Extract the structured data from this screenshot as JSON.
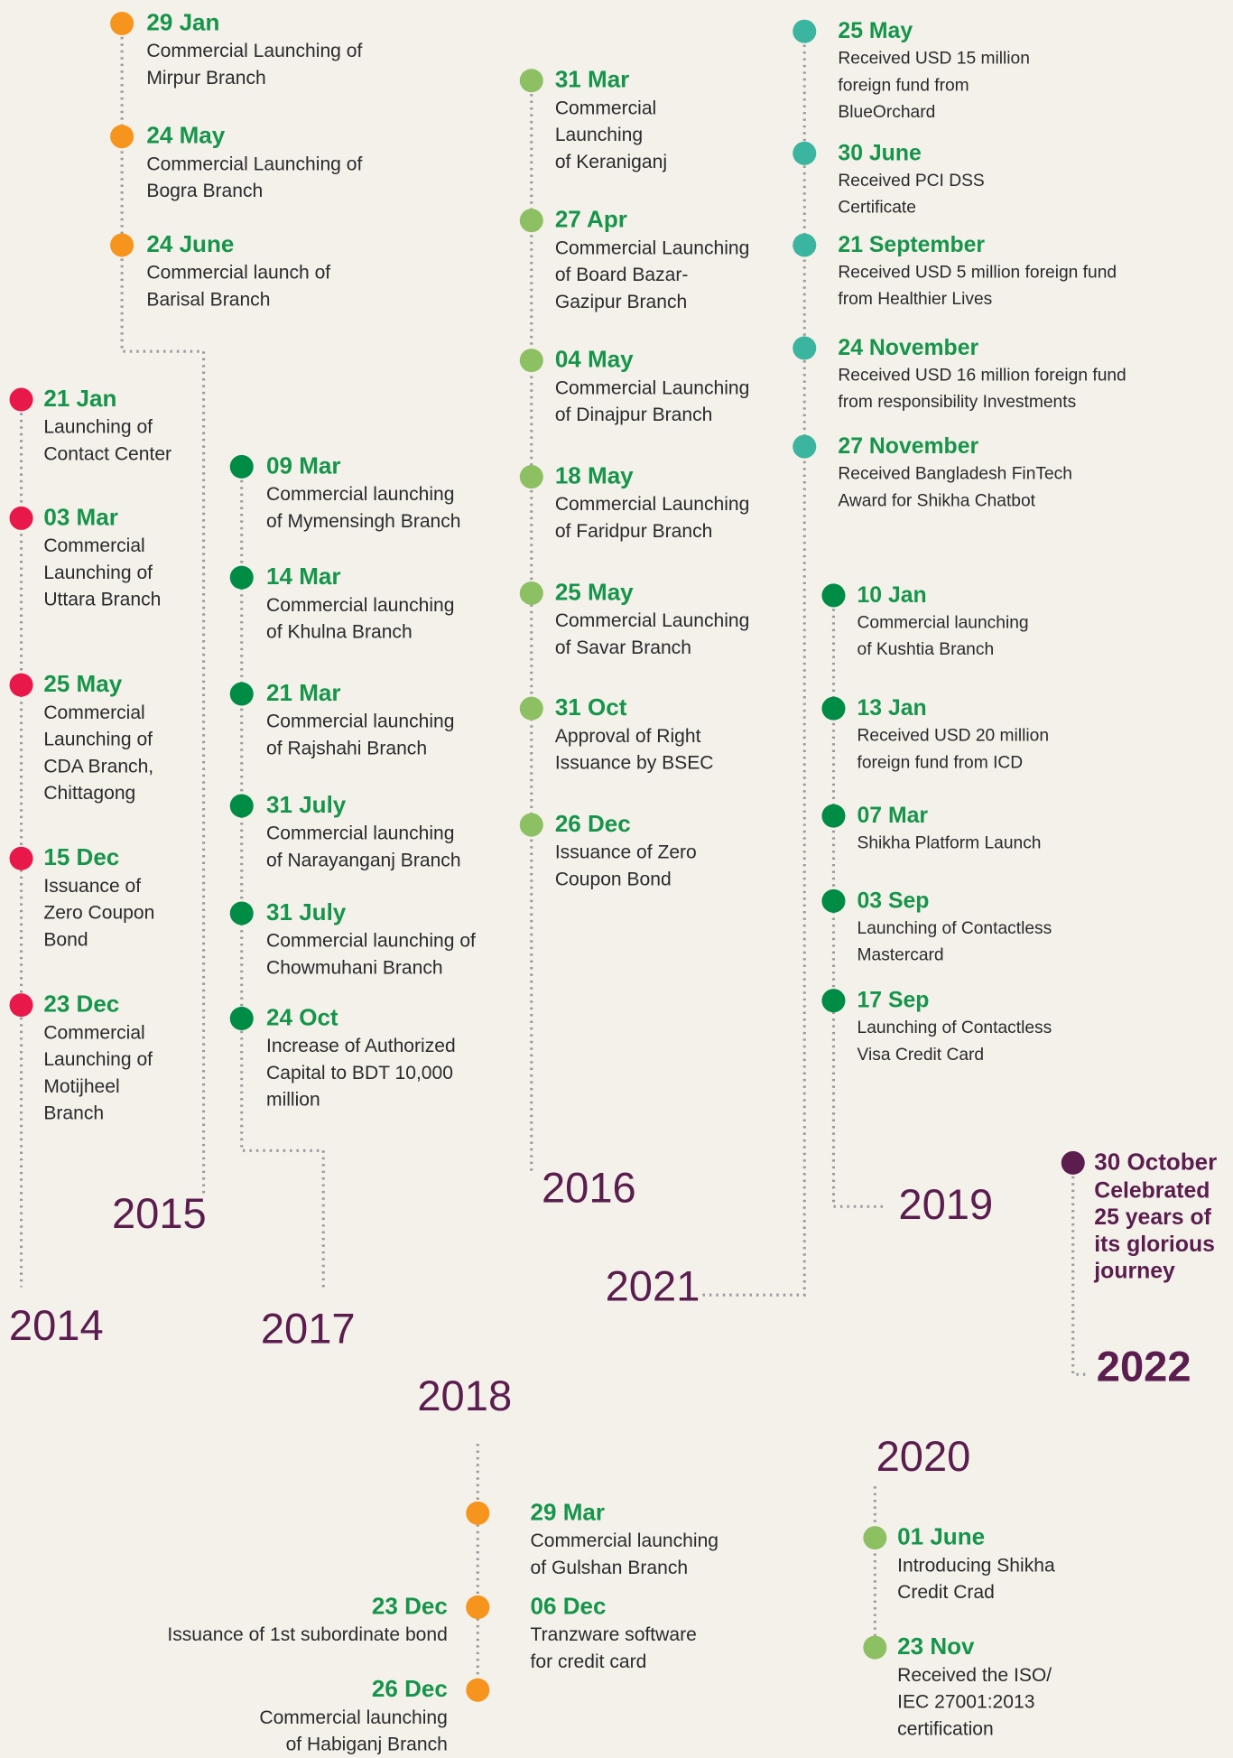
{
  "groups": [
    {
      "year": "2015",
      "events": [
        {
          "date": "29 Jan",
          "lines": [
            "Commercial Launching of",
            "Mirpur Branch"
          ]
        },
        {
          "date": "24 May",
          "lines": [
            "Commercial Launching of",
            "Bogra Branch"
          ]
        },
        {
          "date": "24 June",
          "lines": [
            "Commercial launch of",
            "Barisal Branch"
          ]
        }
      ]
    },
    {
      "year": "2014",
      "events": [
        {
          "date": "21 Jan",
          "lines": [
            "Launching of",
            "Contact Center"
          ]
        },
        {
          "date": "03 Mar",
          "lines": [
            "Commercial",
            "Launching of",
            "Uttara Branch"
          ]
        },
        {
          "date": "25 May",
          "lines": [
            "Commercial",
            "Launching of",
            "CDA Branch,",
            "Chittagong"
          ]
        },
        {
          "date": "15 Dec",
          "lines": [
            "Issuance of",
            "Zero Coupon",
            "Bond"
          ]
        },
        {
          "date": "23 Dec",
          "lines": [
            "Commercial",
            "Launching of",
            "Motijheel",
            "Branch"
          ]
        }
      ]
    },
    {
      "year": "2017",
      "events": [
        {
          "date": "09 Mar",
          "lines": [
            "Commercial launching",
            "of Mymensingh Branch"
          ]
        },
        {
          "date": "14 Mar",
          "lines": [
            "Commercial launching",
            "of Khulna Branch"
          ]
        },
        {
          "date": "21 Mar",
          "lines": [
            "Commercial launching",
            "of Rajshahi Branch"
          ]
        },
        {
          "date": "31 July",
          "lines": [
            "Commercial launching",
            "of Narayanganj Branch"
          ]
        },
        {
          "date": "31 July",
          "lines": [
            "Commercial launching of",
            "Chowmuhani Branch"
          ]
        },
        {
          "date": "24 Oct",
          "lines": [
            "Increase of Authorized",
            "Capital to BDT 10,000",
            "million"
          ]
        }
      ]
    },
    {
      "year": "2016",
      "events": [
        {
          "date": "31 Mar",
          "lines": [
            "Commercial",
            "Launching",
            "of Keraniganj"
          ]
        },
        {
          "date": "27 Apr",
          "lines": [
            "Commercial Launching",
            "of Board Bazar-",
            "Gazipur Branch"
          ]
        },
        {
          "date": "04 May",
          "lines": [
            "Commercial Launching",
            "of Dinajpur Branch"
          ]
        },
        {
          "date": "18 May",
          "lines": [
            "Commercial Launching",
            "of Faridpur Branch"
          ]
        },
        {
          "date": "25 May",
          "lines": [
            "Commercial Launching",
            "of Savar Branch"
          ]
        },
        {
          "date": "31 Oct",
          "lines": [
            "Approval of Right",
            "Issuance by BSEC"
          ]
        },
        {
          "date": "26 Dec",
          "lines": [
            "Issuance of Zero",
            "Coupon Bond"
          ]
        }
      ]
    },
    {
      "year": "2021",
      "events": [
        {
          "date": "25 May",
          "lines": [
            "Received USD 15 million",
            "foreign fund from",
            "BlueOrchard"
          ]
        },
        {
          "date": "30 June",
          "lines": [
            "Received PCI DSS",
            "Certificate"
          ]
        },
        {
          "date": "21 September",
          "lines": [
            "Received USD 5 million foreign fund",
            "from Healthier Lives"
          ]
        },
        {
          "date": "24 November",
          "lines": [
            "Received USD 16 million foreign fund",
            "from responsibility Investments"
          ]
        },
        {
          "date": "27 November",
          "lines": [
            "Received Bangladesh FinTech",
            "Award for Shikha Chatbot"
          ]
        }
      ]
    },
    {
      "year": "2019",
      "events": [
        {
          "date": "10 Jan",
          "lines": [
            "Commercial launching",
            "of Kushtia Branch"
          ]
        },
        {
          "date": "13 Jan",
          "lines": [
            "Received USD 20 million",
            "foreign fund from ICD"
          ]
        },
        {
          "date": "07 Mar",
          "lines": [
            "Shikha Platform Launch"
          ]
        },
        {
          "date": "03 Sep",
          "lines": [
            "Launching of Contactless",
            "Mastercard"
          ]
        },
        {
          "date": "17 Sep",
          "lines": [
            "Launching of Contactless",
            "Visa Credit Card"
          ]
        }
      ]
    },
    {
      "year": "2022",
      "events": [
        {
          "date": "30 October",
          "lines": [
            "Celebrated",
            "25 years of",
            "its glorious",
            "journey"
          ]
        }
      ]
    },
    {
      "year": "2018",
      "events": [
        {
          "date": "29 Mar",
          "lines": [
            "Commercial launching",
            "of Gulshan Branch"
          ]
        },
        {
          "date": "23 Dec",
          "lines": [
            "Issuance of 1st subordinate bond"
          ]
        },
        {
          "date": "06 Dec",
          "lines": [
            "Tranzware software",
            "for credit card"
          ]
        },
        {
          "date": "26 Dec",
          "lines": [
            "Commercial launching",
            "of Habiganj Branch"
          ]
        }
      ]
    },
    {
      "year": "2020",
      "events": [
        {
          "date": "01 June",
          "lines": [
            "Introducing Shikha",
            "Credit Crad"
          ]
        },
        {
          "date": "23 Nov",
          "lines": [
            "Received the ISO/",
            "IEC 27001:2013",
            "certification"
          ]
        }
      ]
    }
  ]
}
